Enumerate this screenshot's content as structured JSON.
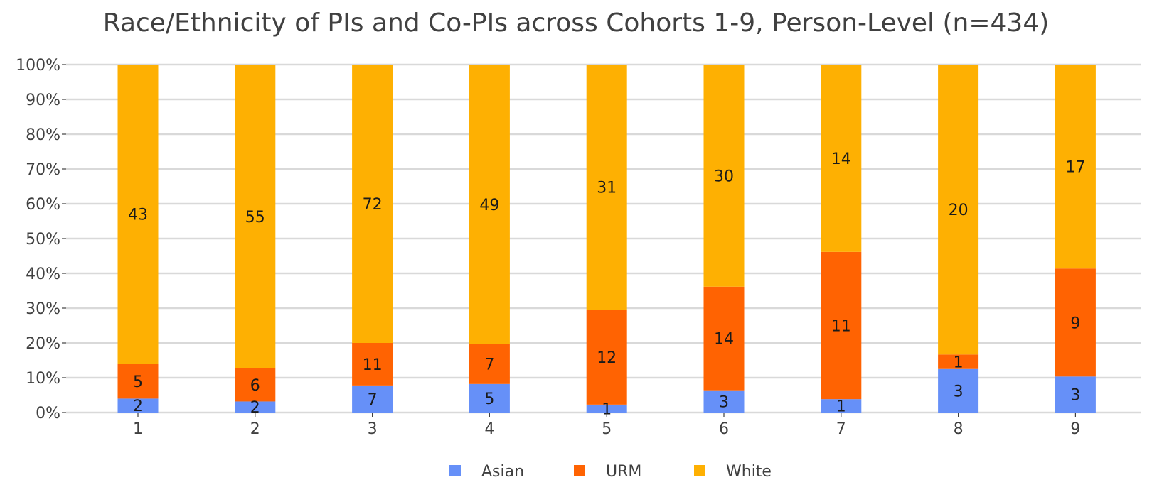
{
  "chart_data": {
    "type": "bar",
    "stacked": true,
    "normalized": true,
    "title": "Race/Ethnicity of PIs and Co-PIs across Cohorts 1-9, Person-Level (n=434)",
    "xlabel": "",
    "ylabel": "",
    "categories": [
      "1",
      "2",
      "3",
      "4",
      "5",
      "6",
      "7",
      "8",
      "9"
    ],
    "y_ticks": [
      "0%",
      "10%",
      "20%",
      "30%",
      "40%",
      "50%",
      "60%",
      "70%",
      "80%",
      "90%",
      "100%"
    ],
    "ylim": [
      0,
      100
    ],
    "grid": true,
    "legend_position": "bottom",
    "series": [
      {
        "name": "Asian",
        "color": "#6690f8",
        "values": [
          2,
          2,
          7,
          5,
          1,
          3,
          1,
          3,
          3
        ]
      },
      {
        "name": "URM",
        "color": "#ff6302",
        "values": [
          5,
          6,
          11,
          7,
          12,
          14,
          11,
          1,
          9
        ]
      },
      {
        "name": "White",
        "color": "#feb002",
        "values": [
          43,
          55,
          72,
          49,
          31,
          30,
          14,
          20,
          17
        ]
      }
    ]
  }
}
